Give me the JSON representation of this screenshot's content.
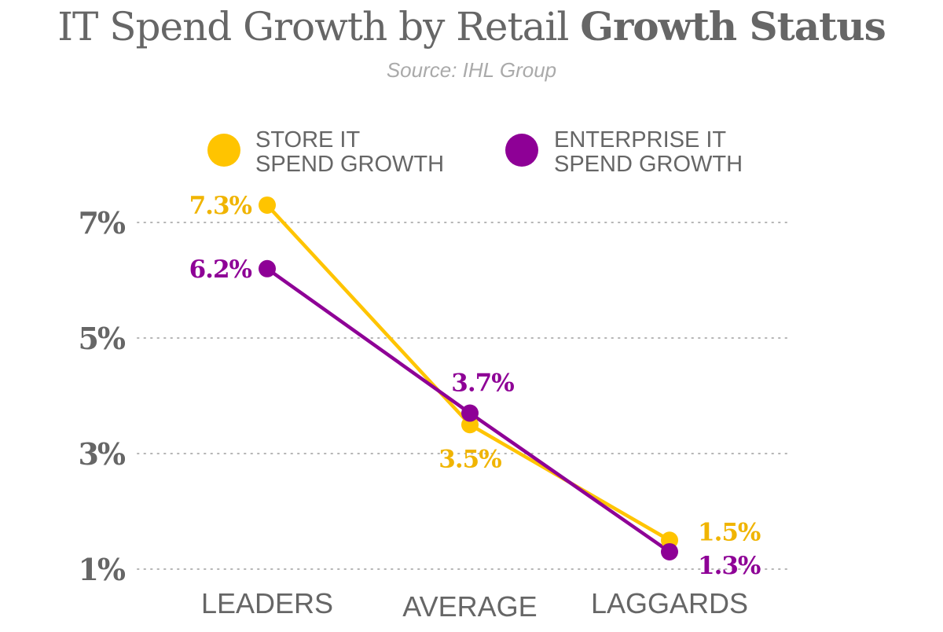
{
  "chart_data": {
    "type": "line",
    "title_regular": "IT Spend Growth by Retail ",
    "title_bold": "Growth Status",
    "subtitle": "Source: IHL Group",
    "categories": [
      "LEADERS",
      "AVERAGE",
      "LAGGARDS"
    ],
    "series": [
      {
        "name": "STORE IT SPEND GROWTH",
        "legend_lines": [
          "STORE IT",
          "SPEND GROWTH"
        ],
        "color": "#FFC400",
        "label_color": "#F0B400",
        "values": [
          7.3,
          3.5,
          1.5
        ],
        "labels": [
          "7.3%",
          "3.5%",
          "1.5%"
        ]
      },
      {
        "name": "ENTERPRISE IT SPEND GROWTH",
        "legend_lines": [
          "ENTERPRISE IT",
          "SPEND GROWTH"
        ],
        "color": "#8E0096",
        "label_color": "#8E0096",
        "values": [
          6.2,
          3.7,
          1.3
        ],
        "labels": [
          "6.2%",
          "3.7%",
          "1.3%"
        ]
      }
    ],
    "y_ticks": [
      {
        "value": 7,
        "label": "7%"
      },
      {
        "value": 5,
        "label": "5%"
      },
      {
        "value": 3,
        "label": "3%"
      },
      {
        "value": 1,
        "label": "1%"
      }
    ],
    "ylim": [
      1,
      7
    ],
    "grid": "dotted horizontal",
    "legend_position": "top",
    "xlabel": "",
    "ylabel": ""
  }
}
